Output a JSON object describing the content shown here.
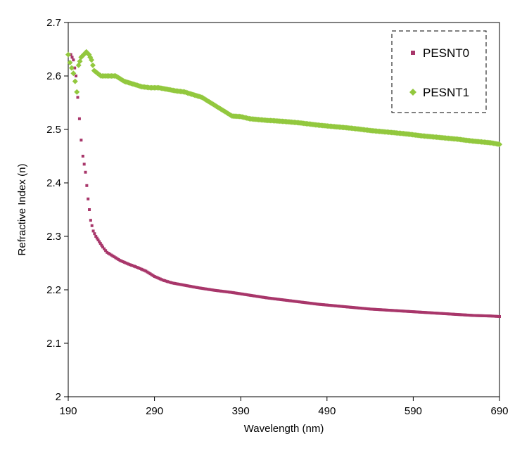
{
  "chart_data": {
    "type": "scatter",
    "title": "",
    "xlabel": "Wavelength (nm)",
    "ylabel": "Refractive Index (n)",
    "xlim": [
      190,
      690
    ],
    "ylim": [
      2.0,
      2.7
    ],
    "x_ticks": [
      190,
      290,
      390,
      490,
      590,
      690
    ],
    "x_tick_labels": [
      "190",
      "290",
      "390",
      "490",
      "590",
      "690"
    ],
    "y_ticks": [
      2.0,
      2.1,
      2.2,
      2.3,
      2.4,
      2.5,
      2.6,
      2.7
    ],
    "y_tick_labels": [
      "2",
      "2.1",
      "2.2",
      "2.3",
      "2.4",
      "2.5",
      "2.6",
      "2.7"
    ],
    "grid": false,
    "legend_position": "top-right",
    "series": [
      {
        "name": "PESNT0",
        "marker": "square",
        "color": "#a8366a",
        "x": [
          190,
          193,
          196,
          199,
          201,
          203,
          205,
          207,
          210,
          213,
          216,
          219,
          222,
          226,
          230,
          235,
          240,
          250,
          260,
          270,
          280,
          290,
          300,
          310,
          320,
          330,
          340,
          360,
          380,
          400,
          420,
          440,
          460,
          480,
          500,
          520,
          540,
          560,
          580,
          600,
          620,
          640,
          660,
          680,
          690
        ],
        "y": [
          2.64,
          2.64,
          2.63,
          2.6,
          2.56,
          2.52,
          2.48,
          2.45,
          2.42,
          2.37,
          2.33,
          2.31,
          2.3,
          2.29,
          2.28,
          2.27,
          2.265,
          2.255,
          2.248,
          2.242,
          2.235,
          2.225,
          2.218,
          2.213,
          2.21,
          2.207,
          2.204,
          2.199,
          2.195,
          2.19,
          2.185,
          2.181,
          2.177,
          2.173,
          2.17,
          2.167,
          2.164,
          2.162,
          2.16,
          2.158,
          2.156,
          2.154,
          2.152,
          2.151,
          2.15
        ]
      },
      {
        "name": "PESNT1",
        "marker": "diamond",
        "color": "#92c83e",
        "x": [
          190,
          192,
          194,
          196,
          198,
          200,
          202,
          205,
          208,
          211,
          214,
          217,
          220,
          224,
          228,
          235,
          245,
          255,
          265,
          275,
          285,
          295,
          305,
          315,
          325,
          335,
          345,
          355,
          365,
          375,
          380,
          390,
          400,
          420,
          440,
          460,
          480,
          500,
          520,
          540,
          560,
          580,
          600,
          620,
          640,
          660,
          680,
          690
        ],
        "y": [
          2.64,
          2.625,
          2.615,
          2.605,
          2.59,
          2.57,
          2.62,
          2.635,
          2.64,
          2.645,
          2.64,
          2.63,
          2.61,
          2.605,
          2.6,
          2.6,
          2.6,
          2.59,
          2.585,
          2.58,
          2.578,
          2.578,
          2.575,
          2.572,
          2.57,
          2.565,
          2.56,
          2.55,
          2.54,
          2.53,
          2.525,
          2.524,
          2.52,
          2.517,
          2.515,
          2.512,
          2.508,
          2.505,
          2.502,
          2.498,
          2.495,
          2.492,
          2.488,
          2.485,
          2.482,
          2.478,
          2.475,
          2.472
        ]
      }
    ]
  }
}
